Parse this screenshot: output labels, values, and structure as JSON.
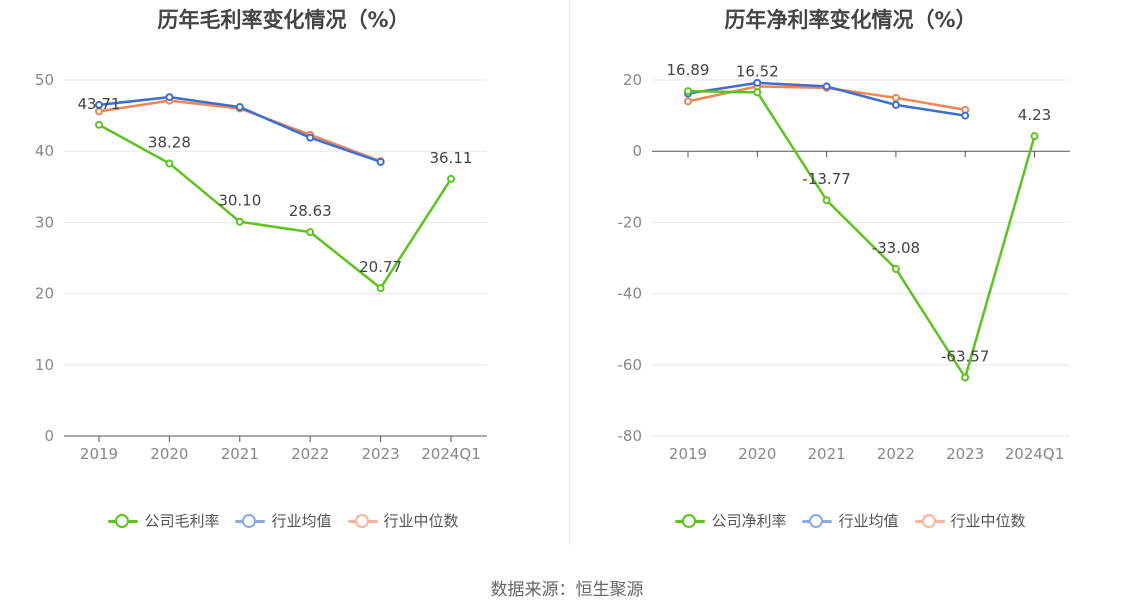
{
  "source_text": "数据来源：恒生聚源",
  "colors": {
    "company": "#5cc31f",
    "industry_avg": "#3e6fd0",
    "industry_median": "#ee8559",
    "grid": "#e8e8ec",
    "axis": "#555555"
  },
  "chart_data": [
    {
      "type": "line",
      "title": "历年毛利率变化情况（%）",
      "categories": [
        "2019",
        "2020",
        "2021",
        "2022",
        "2023",
        "2024Q1"
      ],
      "ylim": [
        0,
        50
      ],
      "yticks": [
        0,
        10,
        20,
        30,
        40,
        50
      ],
      "grid": true,
      "legend_position": "bottom",
      "series": [
        {
          "name": "公司毛利率",
          "key": "company",
          "values": [
            43.71,
            38.28,
            30.1,
            28.63,
            20.77,
            36.11
          ],
          "labels": [
            "43.71",
            "38.28",
            "30.10",
            "28.63",
            "20.77",
            "36.11"
          ]
        },
        {
          "name": "行业均值",
          "key": "industry_avg",
          "values": [
            46.5,
            47.6,
            46.2,
            41.9,
            38.5,
            null
          ]
        },
        {
          "name": "行业中位数",
          "key": "industry_median",
          "values": [
            45.6,
            47.1,
            46.0,
            42.3,
            38.6,
            null
          ]
        }
      ]
    },
    {
      "type": "line",
      "title": "历年净利率变化情况（%）",
      "categories": [
        "2019",
        "2020",
        "2021",
        "2022",
        "2023",
        "2024Q1"
      ],
      "ylim": [
        -80,
        20
      ],
      "yticks": [
        -80,
        -60,
        -40,
        -20,
        0,
        20
      ],
      "grid": true,
      "legend_position": "bottom",
      "series": [
        {
          "name": "公司净利率",
          "key": "company",
          "values": [
            16.89,
            16.52,
            -13.77,
            -33.08,
            -63.57,
            4.23
          ],
          "labels": [
            "16.89",
            "16.52",
            "-13.77",
            "-33.08",
            "-63.57",
            "4.23"
          ]
        },
        {
          "name": "行业均值",
          "key": "industry_avg",
          "values": [
            16.2,
            19.2,
            18.2,
            13.0,
            10.0,
            null
          ]
        },
        {
          "name": "行业中位数",
          "key": "industry_median",
          "values": [
            14.0,
            18.2,
            17.8,
            15.0,
            11.6,
            null
          ]
        }
      ]
    }
  ]
}
